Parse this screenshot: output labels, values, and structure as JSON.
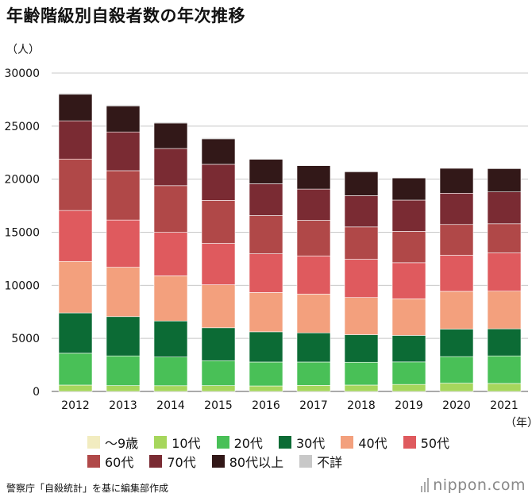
{
  "title": "年齢階級別自殺者数の年次推移",
  "unit_label": "（人）",
  "x_unit_label": "（年）",
  "source": "警察庁「自殺統計」を基に編集部作成",
  "brand": "nippon.com",
  "chart_data": {
    "type": "bar",
    "stacked": true,
    "categories": [
      "2012",
      "2013",
      "2014",
      "2015",
      "2016",
      "2017",
      "2018",
      "2019",
      "2020",
      "2021"
    ],
    "ylim": [
      0,
      30000
    ],
    "yticks": [
      "0",
      "5000",
      "10000",
      "15000",
      "20000",
      "25000",
      "30000"
    ],
    "grid": true,
    "legend_position": "bottom",
    "series": [
      {
        "name": "〜9歳",
        "color": "#f2ecc0",
        "values": [
          0,
          0,
          0,
          0,
          0,
          0,
          0,
          0,
          0,
          0
        ]
      },
      {
        "name": "10代",
        "color": "#a6d65c",
        "values": [
          600,
          550,
          540,
          550,
          520,
          570,
          600,
          660,
          780,
          750
        ]
      },
      {
        "name": "20代",
        "color": "#49c057",
        "values": [
          3000,
          2800,
          2700,
          2350,
          2250,
          2200,
          2150,
          2120,
          2500,
          2600
        ]
      },
      {
        "name": "30代",
        "color": "#0c6b35",
        "values": [
          3800,
          3700,
          3400,
          3100,
          2850,
          2750,
          2600,
          2500,
          2600,
          2550
        ]
      },
      {
        "name": "40代",
        "color": "#f3a07d",
        "values": [
          4850,
          4650,
          4250,
          4050,
          3700,
          3650,
          3500,
          3450,
          3550,
          3550
        ]
      },
      {
        "name": "50代",
        "color": "#df5a5e",
        "values": [
          4800,
          4450,
          4100,
          3900,
          3650,
          3600,
          3600,
          3400,
          3400,
          3600
        ]
      },
      {
        "name": "60代",
        "color": "#b04848",
        "values": [
          4850,
          4650,
          4400,
          4050,
          3600,
          3350,
          3050,
          2950,
          2900,
          2750
        ]
      },
      {
        "name": "70代",
        "color": "#7a2b33",
        "values": [
          3600,
          3650,
          3500,
          3400,
          3000,
          2950,
          2950,
          2950,
          2950,
          3000
        ]
      },
      {
        "name": "80代以上",
        "color": "#321818",
        "values": [
          2500,
          2450,
          2400,
          2400,
          2300,
          2200,
          2250,
          2080,
          2350,
          2200
        ]
      },
      {
        "name": "不詳",
        "color": "#c8c8c8",
        "values": [
          100,
          100,
          100,
          100,
          60,
          60,
          60,
          40,
          50,
          40
        ]
      }
    ]
  }
}
